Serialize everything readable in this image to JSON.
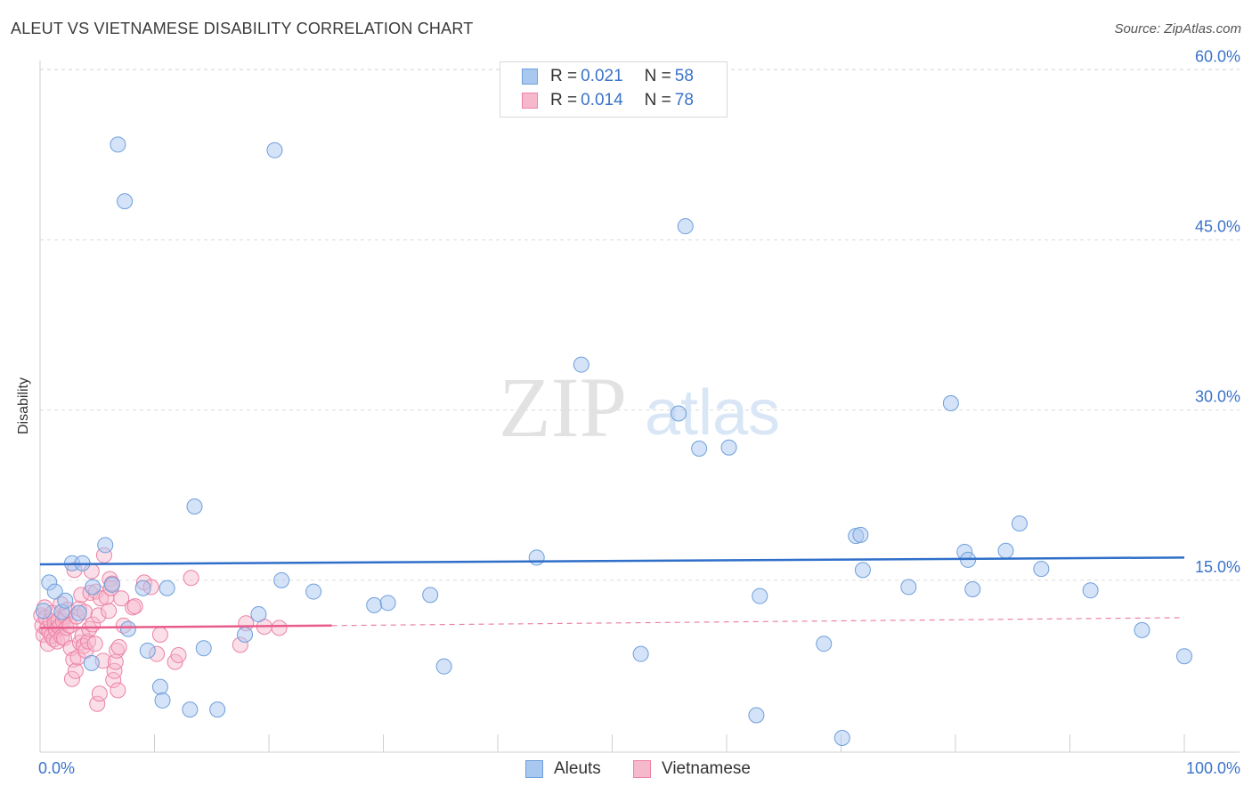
{
  "title": "ALEUT VS VIETNAMESE DISABILITY CORRELATION CHART",
  "source": "Source: ZipAtlas.com",
  "watermark": {
    "zip": "ZIP",
    "atlas": "atlas"
  },
  "colors": {
    "aleut_fill": "#a9c8f0",
    "aleut_stroke": "#6e9fdc",
    "aleut_line": "#2f6fc9",
    "viet_fill": "#f6b9cc",
    "viet_stroke": "#ec82a5",
    "viet_line": "#e85c8c",
    "tick_text": "#3b73c9"
  },
  "legend": {
    "aleut": {
      "r_label": "R = ",
      "r_value": "0.021",
      "n_label": "N = ",
      "n_value": "58"
    },
    "viet": {
      "r_label": "R = ",
      "r_value": "0.014",
      "n_label": "N = ",
      "n_value": "78"
    }
  },
  "chart_data": {
    "type": "scatter",
    "title": "ALEUT VS VIETNAMESE DISABILITY CORRELATION CHART",
    "xlabel": "",
    "ylabel": "Disability",
    "xlim": [
      0,
      100
    ],
    "ylim": [
      0,
      63
    ],
    "x_tick_labels": [
      "0.0%",
      "100.0%"
    ],
    "y_ticks": [
      15,
      30,
      45,
      60
    ],
    "y_tick_labels": [
      "15.0%",
      "30.0%",
      "45.0%",
      "60.0%"
    ],
    "grid": true,
    "legend_position": "top-center",
    "series": [
      {
        "name": "Aleuts",
        "r": 0.021,
        "n": 58,
        "trend": {
          "x": [
            0,
            100
          ],
          "y": [
            16.4,
            17.0
          ]
        },
        "points": [
          [
            0.3,
            12.3
          ],
          [
            0.8,
            14.8
          ],
          [
            1.3,
            14.0
          ],
          [
            1.9,
            12.2
          ],
          [
            2.2,
            13.2
          ],
          [
            2.8,
            16.5
          ],
          [
            3.4,
            12.1
          ],
          [
            3.7,
            16.5
          ],
          [
            4.5,
            7.7
          ],
          [
            4.6,
            14.4
          ],
          [
            5.7,
            18.1
          ],
          [
            6.3,
            14.6
          ],
          [
            6.8,
            53.4
          ],
          [
            7.4,
            48.4
          ],
          [
            7.7,
            10.7
          ],
          [
            9.0,
            14.3
          ],
          [
            9.4,
            8.8
          ],
          [
            10.5,
            5.6
          ],
          [
            10.7,
            4.4
          ],
          [
            11.1,
            14.3
          ],
          [
            13.1,
            3.6
          ],
          [
            13.5,
            21.5
          ],
          [
            14.3,
            9.0
          ],
          [
            15.5,
            3.6
          ],
          [
            17.9,
            10.2
          ],
          [
            19.1,
            12.0
          ],
          [
            20.5,
            52.9
          ],
          [
            21.1,
            15.0
          ],
          [
            23.9,
            14.0
          ],
          [
            29.2,
            12.8
          ],
          [
            30.4,
            13.0
          ],
          [
            34.1,
            13.7
          ],
          [
            35.3,
            7.4
          ],
          [
            43.4,
            17.0
          ],
          [
            47.3,
            34.0
          ],
          [
            52.5,
            8.5
          ],
          [
            55.8,
            29.7
          ],
          [
            56.4,
            46.2
          ],
          [
            57.6,
            26.6
          ],
          [
            60.2,
            26.7
          ],
          [
            62.6,
            3.1
          ],
          [
            62.9,
            13.6
          ],
          [
            68.5,
            9.4
          ],
          [
            70.1,
            1.1
          ],
          [
            71.3,
            18.9
          ],
          [
            71.7,
            19.0
          ],
          [
            71.9,
            15.9
          ],
          [
            75.9,
            14.4
          ],
          [
            79.6,
            30.6
          ],
          [
            80.8,
            17.5
          ],
          [
            81.1,
            16.8
          ],
          [
            81.5,
            14.2
          ],
          [
            84.4,
            17.6
          ],
          [
            85.6,
            20.0
          ],
          [
            87.5,
            16.0
          ],
          [
            91.8,
            14.1
          ],
          [
            96.3,
            10.6
          ],
          [
            100.0,
            8.3
          ]
        ]
      },
      {
        "name": "Vietnamese",
        "r": 0.014,
        "n": 78,
        "trend": {
          "x": [
            0,
            25.5
          ],
          "y": [
            10.8,
            11.0
          ]
        },
        "trend_extended": {
          "x": [
            25.5,
            100
          ],
          "y": [
            11.0,
            11.7
          ]
        },
        "points": [
          [
            0.1,
            11.9
          ],
          [
            0.2,
            11.0
          ],
          [
            0.3,
            10.2
          ],
          [
            0.4,
            12.6
          ],
          [
            0.5,
            11.7
          ],
          [
            0.6,
            10.7
          ],
          [
            0.7,
            9.4
          ],
          [
            0.8,
            10.5
          ],
          [
            0.9,
            11.4
          ],
          [
            1.0,
            10.1
          ],
          [
            1.1,
            12.1
          ],
          [
            1.2,
            9.8
          ],
          [
            1.3,
            11.2
          ],
          [
            1.4,
            10.6
          ],
          [
            1.5,
            9.6
          ],
          [
            1.6,
            11.5
          ],
          [
            1.7,
            10.9
          ],
          [
            1.8,
            12.9
          ],
          [
            1.9,
            10.0
          ],
          [
            2.0,
            11.4
          ],
          [
            2.1,
            9.9
          ],
          [
            2.2,
            11.8
          ],
          [
            2.3,
            10.8
          ],
          [
            2.4,
            12.4
          ],
          [
            2.6,
            11.0
          ],
          [
            2.7,
            9.0
          ],
          [
            2.8,
            6.3
          ],
          [
            2.9,
            8.0
          ],
          [
            3.0,
            15.9
          ],
          [
            3.1,
            7.0
          ],
          [
            3.2,
            11.8
          ],
          [
            3.3,
            8.2
          ],
          [
            3.4,
            12.5
          ],
          [
            3.5,
            9.5
          ],
          [
            3.6,
            13.7
          ],
          [
            3.7,
            10.1
          ],
          [
            3.8,
            9.2
          ],
          [
            3.9,
            12.2
          ],
          [
            4.0,
            8.8
          ],
          [
            4.2,
            9.6
          ],
          [
            4.3,
            10.7
          ],
          [
            4.4,
            13.9
          ],
          [
            4.5,
            15.8
          ],
          [
            4.6,
            11.1
          ],
          [
            4.8,
            9.4
          ],
          [
            4.9,
            14.0
          ],
          [
            5.0,
            4.1
          ],
          [
            5.1,
            11.9
          ],
          [
            5.2,
            5.0
          ],
          [
            5.3,
            13.4
          ],
          [
            5.5,
            7.9
          ],
          [
            5.6,
            17.2
          ],
          [
            5.8,
            13.5
          ],
          [
            6.0,
            12.3
          ],
          [
            6.1,
            15.1
          ],
          [
            6.2,
            14.3
          ],
          [
            6.3,
            14.7
          ],
          [
            6.4,
            6.2
          ],
          [
            6.5,
            7.0
          ],
          [
            6.6,
            7.8
          ],
          [
            6.7,
            8.8
          ],
          [
            6.8,
            5.3
          ],
          [
            6.9,
            9.1
          ],
          [
            7.1,
            13.4
          ],
          [
            7.3,
            11.0
          ],
          [
            8.1,
            12.6
          ],
          [
            8.3,
            12.7
          ],
          [
            9.1,
            14.8
          ],
          [
            9.7,
            14.4
          ],
          [
            10.2,
            8.5
          ],
          [
            10.5,
            10.2
          ],
          [
            11.8,
            7.8
          ],
          [
            12.1,
            8.4
          ],
          [
            13.2,
            15.2
          ],
          [
            17.5,
            9.3
          ],
          [
            18.0,
            11.2
          ],
          [
            19.6,
            10.9
          ],
          [
            20.9,
            10.8
          ]
        ]
      }
    ]
  }
}
